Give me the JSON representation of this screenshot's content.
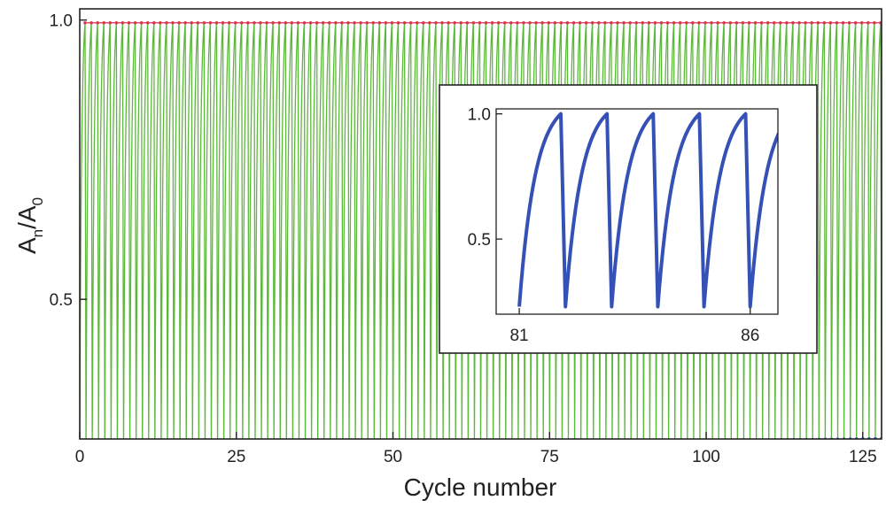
{
  "chart_data": [
    {
      "type": "line",
      "xlabel": "Cycle number",
      "ylabel_main": "A",
      "ylabel_sub1": "n",
      "ylabel_mid": "/A",
      "ylabel_sub2": "0",
      "xlim": [
        0,
        128
      ],
      "ylim": [
        0.25,
        1.02
      ],
      "x_ticks": [
        0,
        25,
        50,
        75,
        100,
        125
      ],
      "y_ticks": [
        0.5,
        1.0
      ],
      "x_tick_labels": [
        "0",
        "25",
        "50",
        "75",
        "100",
        "125"
      ],
      "y_tick_labels": [
        "0.5",
        "1.0"
      ],
      "grid": false,
      "colors": {
        "signal": "#5cb83a",
        "max_markers": "#d9364f",
        "min_markers": "#3a55b4",
        "axis": "#222222"
      },
      "cycle_count": 128,
      "series": [
        {
          "values_at_cycle_start": 0.995,
          "values_at_cycle_end": 0.995
        },
        {
          "min_at_cycle_0": 0.235,
          "min_at_cycle_128": 0.25
        }
      ]
    },
    {
      "type": "line",
      "inset": true,
      "xlim": [
        80.5,
        86.6
      ],
      "ylim": [
        0.2,
        1.02
      ],
      "x_ticks": [
        81,
        86
      ],
      "y_ticks": [
        0.5,
        1.0
      ],
      "x_tick_labels": [
        "81",
        "86"
      ],
      "y_tick_labels": [
        "0.5",
        "1.0"
      ],
      "peaks_x": [
        81.9,
        82.9,
        83.9,
        84.9,
        85.9,
        86.9
      ],
      "trough_value": 0.23,
      "peak_value": 1.0,
      "colors": {
        "line": "#3551b5"
      }
    }
  ]
}
